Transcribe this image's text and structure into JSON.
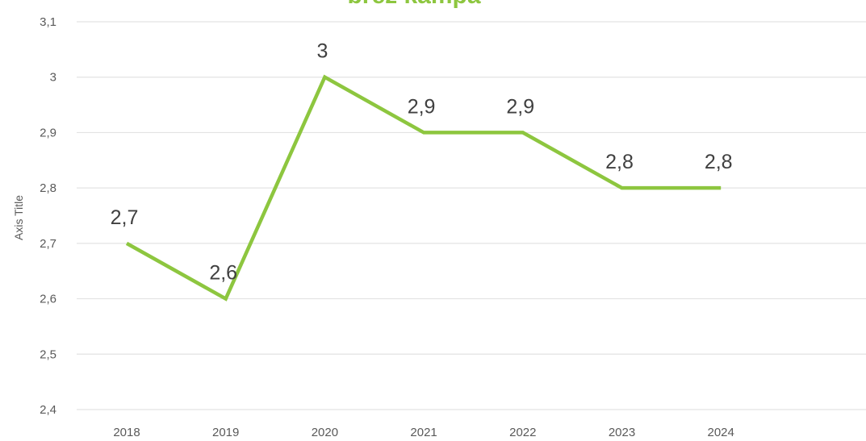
{
  "colors": {
    "series": "#8dc63f",
    "title": "#8dc63f",
    "grid": "#e3e3e3",
    "text": "#595959",
    "data_label": "#404040"
  },
  "chart_data": {
    "type": "line",
    "title": "brez kampa",
    "ylabel": "Axis Title",
    "xlabel": "",
    "categories": [
      "2018",
      "2019",
      "2020",
      "2021",
      "2022",
      "2023",
      "2024"
    ],
    "series": [
      {
        "values": [
          2.7,
          2.6,
          3,
          2.9,
          2.9,
          2.8,
          2.8
        ],
        "data_labels": [
          "2,7",
          "2,6",
          "3",
          "2,9",
          "2,9",
          "2,8",
          "2,8"
        ]
      }
    ],
    "ylim": [
      2.4,
      3.1
    ],
    "yticks": [
      2.4,
      2.5,
      2.6,
      2.7,
      2.8,
      2.9,
      3,
      3.1
    ],
    "ytick_labels": [
      "2,4",
      "2,5",
      "2,6",
      "2,7",
      "2,8",
      "2,9",
      "3",
      "3,1"
    ],
    "grid": true,
    "legend": "none"
  }
}
